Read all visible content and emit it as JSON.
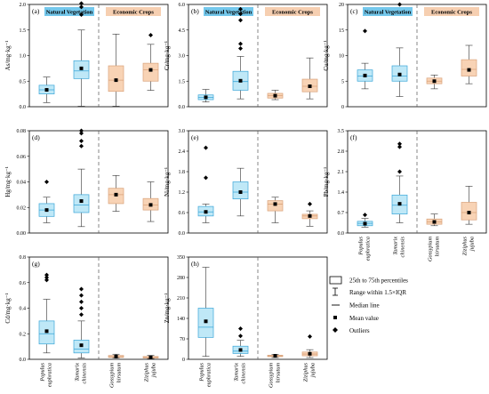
{
  "colors": {
    "natural_fill": "#bfe8f7",
    "natural_edge": "#3aa6d8",
    "crop_fill": "#f8d3b5",
    "crop_edge": "#d9a27a",
    "natural_tag_bg": "#74c8ec",
    "crop_tag_bg": "#f6cfb1",
    "axis": "#000000",
    "divider": "#555555"
  },
  "group_labels": {
    "natural": "Natural Vegetation",
    "crops": "Economic Crops"
  },
  "categories": [
    [
      "Populus",
      "euphratica"
    ],
    [
      "Tamarix",
      "chinensis"
    ],
    [
      "Gossypium",
      "hirsutum"
    ],
    [
      "Ziziphus",
      "jujuba"
    ]
  ],
  "legend": {
    "box": "25th to 75th percentiles",
    "whisker": "Range within 1.5×IQR",
    "median": "Median line",
    "mean": "Mean value",
    "outlier": "Outliers"
  },
  "chart_data": [
    {
      "type": "box",
      "panel": "(a)",
      "ylabel": "As/mg·kg⁻¹",
      "ylim": [
        0,
        2.0
      ],
      "yticks": [
        "0.0",
        "0.5",
        "1.0",
        "1.5",
        "2.0"
      ],
      "boxes": [
        {
          "q1": 0.25,
          "median": 0.33,
          "q3": 0.42,
          "wlow": 0.08,
          "whigh": 0.58,
          "mean": 0.33,
          "outliers": []
        },
        {
          "q1": 0.55,
          "median": 0.7,
          "q3": 0.9,
          "wlow": 0.01,
          "whigh": 1.5,
          "mean": 0.75,
          "outliers": [
            1.8,
            1.95,
            2.02
          ]
        },
        {
          "q1": 0.3,
          "median": 0.52,
          "q3": 0.8,
          "wlow": 0.01,
          "whigh": 1.42,
          "mean": 0.52,
          "outliers": []
        },
        {
          "q1": 0.5,
          "median": 0.72,
          "q3": 0.85,
          "wlow": 0.32,
          "whigh": 1.22,
          "mean": 0.72,
          "outliers": [
            1.4
          ]
        }
      ]
    },
    {
      "type": "box",
      "panel": "(b)",
      "ylabel": "Cr/mg·kg⁻¹",
      "ylim": [
        0,
        6.5
      ],
      "yticks": [
        "0.0",
        "1.5",
        "3.0",
        "4.5",
        "6.0"
      ],
      "boxes": [
        {
          "q1": 0.45,
          "median": 0.6,
          "q3": 0.75,
          "wlow": 0.3,
          "whigh": 1.1,
          "mean": 0.6,
          "outliers": []
        },
        {
          "q1": 1.05,
          "median": 1.6,
          "q3": 2.25,
          "wlow": 0.5,
          "whigh": 3.2,
          "mean": 1.65,
          "outliers": [
            3.7,
            4.0,
            5.5,
            5.9,
            6.2
          ]
        },
        {
          "q1": 0.55,
          "median": 0.7,
          "q3": 0.85,
          "wlow": 0.45,
          "whigh": 1.05,
          "mean": 0.7,
          "outliers": []
        },
        {
          "q1": 0.95,
          "median": 1.3,
          "q3": 1.75,
          "wlow": 0.5,
          "whigh": 3.1,
          "mean": 1.3,
          "outliers": []
        }
      ]
    },
    {
      "type": "box",
      "panel": "(c)",
      "ylabel": "Cu/mg·kg⁻¹",
      "ylim": [
        0,
        20
      ],
      "yticks": [
        "0",
        "5",
        "10",
        "15",
        "20"
      ],
      "boxes": [
        {
          "q1": 5.0,
          "median": 6.0,
          "q3": 7.2,
          "wlow": 3.5,
          "whigh": 8.5,
          "mean": 6.1,
          "outliers": [
            14.8
          ]
        },
        {
          "q1": 5.0,
          "median": 6.0,
          "q3": 8.0,
          "wlow": 2.0,
          "whigh": 11.5,
          "mean": 6.3,
          "outliers": [
            20.0
          ]
        },
        {
          "q1": 4.5,
          "median": 5.0,
          "q3": 5.6,
          "wlow": 3.5,
          "whigh": 6.2,
          "mean": 5.0,
          "outliers": []
        },
        {
          "q1": 6.0,
          "median": 7.3,
          "q3": 9.2,
          "wlow": 4.5,
          "whigh": 12.0,
          "mean": 7.2,
          "outliers": []
        }
      ]
    },
    {
      "type": "box",
      "panel": "(d)",
      "ylabel": "Hg/mg·kg⁻¹",
      "ylim": [
        0,
        0.08
      ],
      "yticks": [
        "0.00",
        "0.02",
        "0.04",
        "0.06",
        "0.08"
      ],
      "boxes": [
        {
          "q1": 0.013,
          "median": 0.018,
          "q3": 0.023,
          "wlow": 0.008,
          "whigh": 0.028,
          "mean": 0.018,
          "outliers": [
            0.04
          ]
        },
        {
          "q1": 0.016,
          "median": 0.022,
          "q3": 0.03,
          "wlow": 0.005,
          "whigh": 0.05,
          "mean": 0.025,
          "outliers": [
            0.068,
            0.072,
            0.078,
            0.08
          ]
        },
        {
          "q1": 0.023,
          "median": 0.03,
          "q3": 0.035,
          "wlow": 0.017,
          "whigh": 0.045,
          "mean": 0.03,
          "outliers": []
        },
        {
          "q1": 0.018,
          "median": 0.022,
          "q3": 0.027,
          "wlow": 0.009,
          "whigh": 0.04,
          "mean": 0.022,
          "outliers": []
        }
      ]
    },
    {
      "type": "box",
      "panel": "(e)",
      "ylabel": "Ni/mg·kg⁻¹",
      "ylim": [
        0,
        3.0
      ],
      "yticks": [
        "0.0",
        "0.6",
        "1.2",
        "1.8",
        "2.4",
        "3.0"
      ],
      "boxes": [
        {
          "q1": 0.5,
          "median": 0.62,
          "q3": 0.78,
          "wlow": 0.3,
          "whigh": 0.85,
          "mean": 0.62,
          "outliers": [
            1.62,
            2.5
          ]
        },
        {
          "q1": 1.0,
          "median": 1.2,
          "q3": 1.5,
          "wlow": 0.5,
          "whigh": 1.9,
          "mean": 1.2,
          "outliers": []
        },
        {
          "q1": 0.65,
          "median": 0.85,
          "q3": 0.95,
          "wlow": 0.3,
          "whigh": 1.05,
          "mean": 0.85,
          "outliers": []
        },
        {
          "q1": 0.42,
          "median": 0.5,
          "q3": 0.55,
          "wlow": 0.2,
          "whigh": 0.65,
          "mean": 0.5,
          "outliers": [
            0.85
          ]
        }
      ]
    },
    {
      "type": "box",
      "panel": "(f)",
      "ylabel": "Pb/mg·kg⁻¹",
      "ylim": [
        0,
        3.5
      ],
      "yticks": [
        "0.0",
        "0.7",
        "1.4",
        "2.1",
        "2.8",
        "3.5"
      ],
      "boxes": [
        {
          "q1": 0.25,
          "median": 0.33,
          "q3": 0.4,
          "wlow": 0.2,
          "whigh": 0.5,
          "mean": 0.32,
          "outliers": [
            0.62
          ]
        },
        {
          "q1": 0.65,
          "median": 0.95,
          "q3": 1.3,
          "wlow": 0.35,
          "whigh": 1.95,
          "mean": 1.0,
          "outliers": [
            2.1,
            2.95,
            3.05
          ]
        },
        {
          "q1": 0.3,
          "median": 0.38,
          "q3": 0.48,
          "wlow": 0.25,
          "whigh": 0.65,
          "mean": 0.38,
          "outliers": []
        },
        {
          "q1": 0.45,
          "median": 0.7,
          "q3": 1.05,
          "wlow": 0.3,
          "whigh": 1.6,
          "mean": 0.7,
          "outliers": []
        }
      ]
    },
    {
      "type": "box",
      "panel": "(g)",
      "ylabel": "Cd/mg·kg⁻¹",
      "ylim": [
        0,
        0.8
      ],
      "yticks": [
        "0.0",
        "0.2",
        "0.4",
        "0.6",
        "0.8"
      ],
      "boxes": [
        {
          "q1": 0.12,
          "median": 0.2,
          "q3": 0.3,
          "wlow": 0.05,
          "whigh": 0.47,
          "mean": 0.22,
          "outliers": [
            0.62,
            0.64,
            0.66
          ]
        },
        {
          "q1": 0.05,
          "median": 0.08,
          "q3": 0.15,
          "wlow": 0.01,
          "whigh": 0.3,
          "mean": 0.11,
          "outliers": [
            0.35,
            0.4,
            0.45,
            0.5,
            0.55
          ]
        },
        {
          "q1": 0.015,
          "median": 0.02,
          "q3": 0.03,
          "wlow": 0.01,
          "whigh": 0.04,
          "mean": 0.022,
          "outliers": []
        },
        {
          "q1": 0.01,
          "median": 0.015,
          "q3": 0.022,
          "wlow": 0.005,
          "whigh": 0.03,
          "mean": 0.016,
          "outliers": []
        }
      ]
    },
    {
      "type": "box",
      "panel": "(h)",
      "ylabel": "Zn/mg·kg⁻¹",
      "ylim": [
        0,
        350
      ],
      "yticks": [
        "0",
        "70",
        "140",
        "210",
        "280",
        "350"
      ],
      "boxes": [
        {
          "q1": 75,
          "median": 110,
          "q3": 175,
          "wlow": 10,
          "whigh": 315,
          "mean": 130,
          "outliers": []
        },
        {
          "q1": 20,
          "median": 28,
          "q3": 45,
          "wlow": 10,
          "whigh": 65,
          "mean": 32,
          "outliers": [
            80,
            105
          ]
        },
        {
          "q1": 9,
          "median": 12,
          "q3": 14,
          "wlow": 6,
          "whigh": 17,
          "mean": 12,
          "outliers": []
        },
        {
          "q1": 12,
          "median": 18,
          "q3": 25,
          "wlow": 6,
          "whigh": 33,
          "mean": 19,
          "outliers": [
            78
          ]
        }
      ]
    }
  ]
}
